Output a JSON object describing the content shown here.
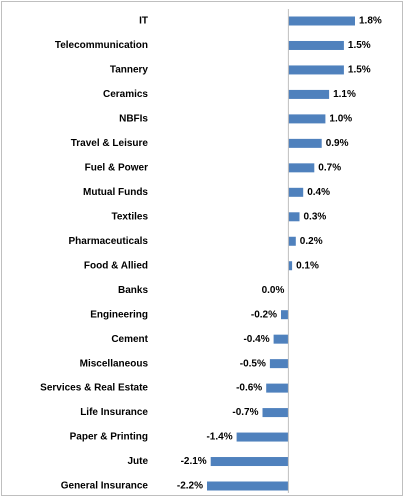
{
  "chart_data": {
    "type": "bar",
    "orientation": "horizontal",
    "categories": [
      "IT",
      "Telecommunication",
      "Tannery",
      "Ceramics",
      "NBFIs",
      "Travel & Leisure",
      "Fuel & Power",
      "Mutual Funds",
      "Textiles",
      "Pharmaceuticals",
      "Food & Allied",
      "Banks",
      "Engineering",
      "Cement",
      "Miscellaneous",
      "Services & Real Estate",
      "Life Insurance",
      "Paper & Printing",
      "Jute",
      "General Insurance"
    ],
    "values": [
      1.8,
      1.5,
      1.5,
      1.1,
      1.0,
      0.9,
      0.7,
      0.4,
      0.3,
      0.2,
      0.1,
      0.0,
      -0.2,
      -0.4,
      -0.5,
      -0.6,
      -0.7,
      -1.4,
      -2.1,
      -2.2
    ],
    "value_labels": [
      "1.8%",
      "1.5%",
      "1.5%",
      "1.1%",
      "1.0%",
      "0.9%",
      "0.7%",
      "0.4%",
      "0.3%",
      "0.2%",
      "0.1%",
      "0.0%",
      "-0.2%",
      "-0.4%",
      "-0.5%",
      "-0.6%",
      "-0.7%",
      "-1.4%",
      "-2.1%",
      "-2.2%"
    ],
    "color": "#4f81bd"
  }
}
